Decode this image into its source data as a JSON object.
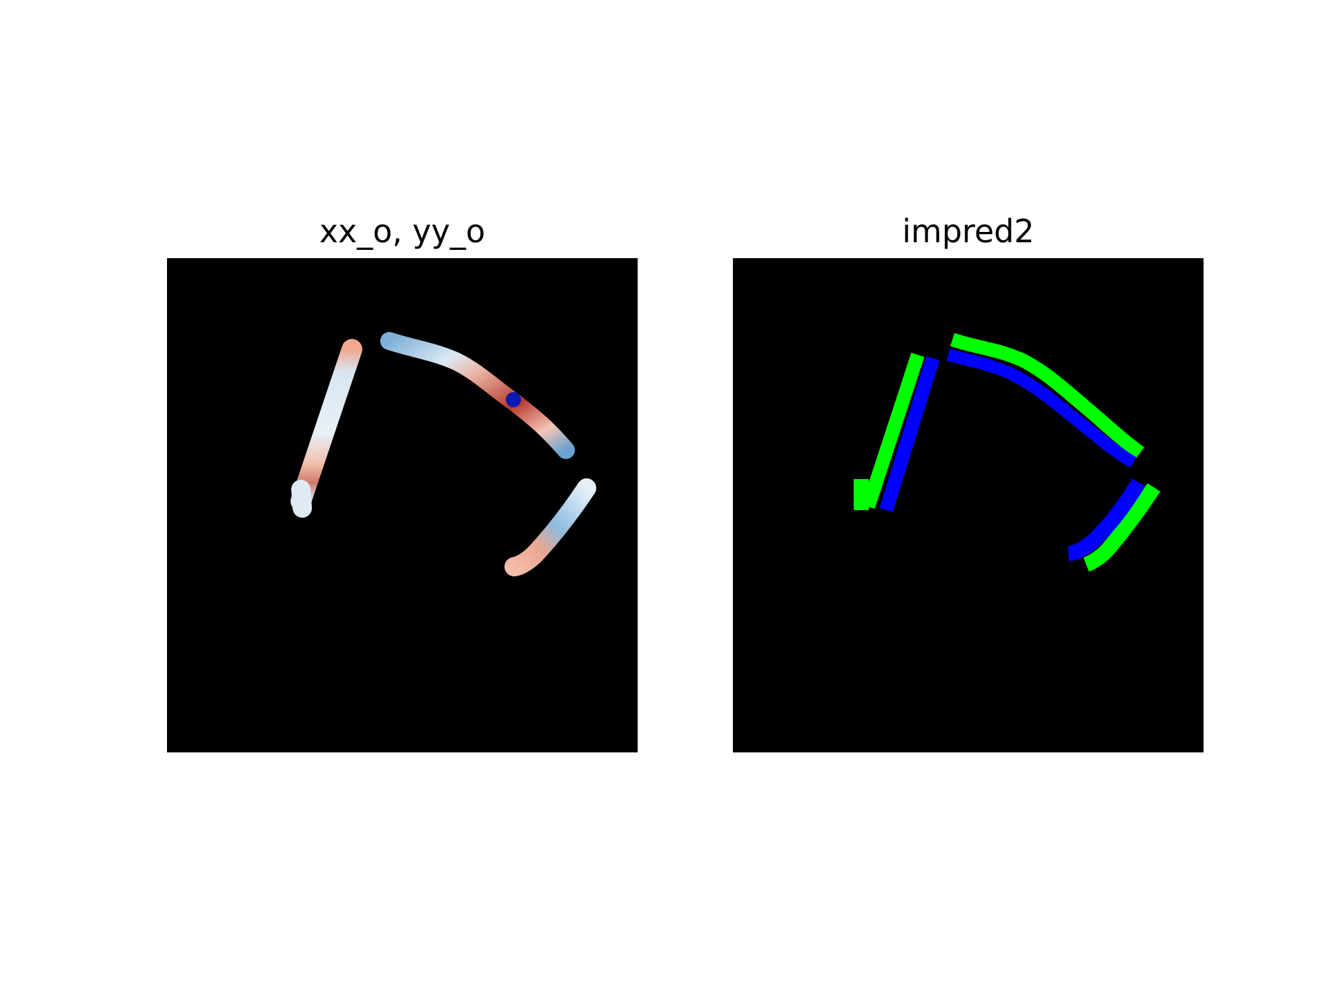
{
  "figure": {
    "panels": [
      {
        "title": "xx_o, yy_o",
        "content": "colored-overlay-image",
        "colors": {
          "background": "#000000",
          "warm": "#c0453a",
          "cool": "#5a9ad0",
          "marker": "#0a1ab0"
        }
      },
      {
        "title": "impred2",
        "content": "segmentation-mask",
        "colors": {
          "background": "#000000",
          "class_a": "#00ff00",
          "class_b": "#0000ff"
        }
      }
    ]
  }
}
